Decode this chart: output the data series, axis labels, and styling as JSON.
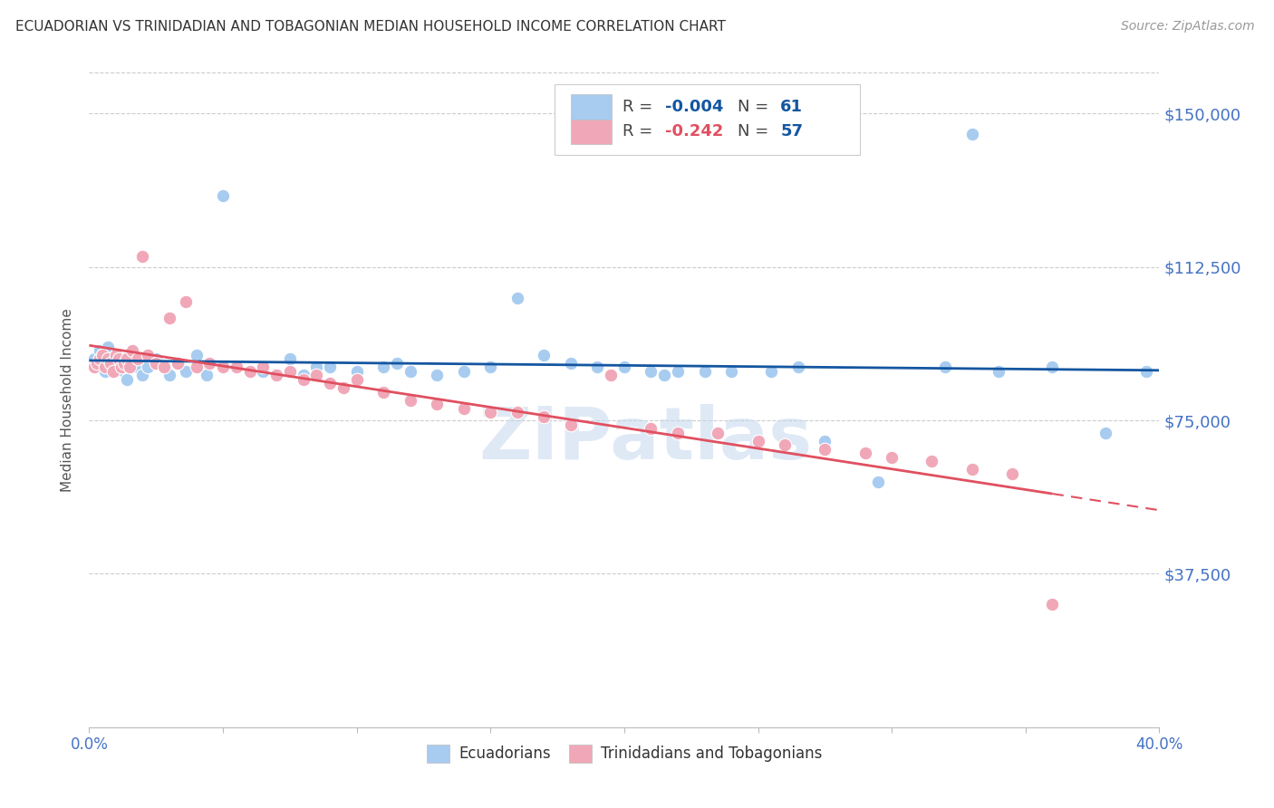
{
  "title": "ECUADORIAN VS TRINIDADIAN AND TOBAGONIAN MEDIAN HOUSEHOLD INCOME CORRELATION CHART",
  "source": "Source: ZipAtlas.com",
  "ylabel": "Median Household Income",
  "x_min": 0.0,
  "x_max": 0.4,
  "y_min": 0,
  "y_max": 160000,
  "y_ticks": [
    37500,
    75000,
    112500,
    150000
  ],
  "y_tick_labels": [
    "$37,500",
    "$75,000",
    "$112,500",
    "$150,000"
  ],
  "x_ticks": [
    0.0,
    0.05,
    0.1,
    0.15,
    0.2,
    0.25,
    0.3,
    0.35,
    0.4
  ],
  "x_tick_labels": [
    "0.0%",
    "",
    "",
    "",
    "",
    "",
    "",
    "",
    "40.0%"
  ],
  "watermark": "ZIPatlas",
  "color_blue": "#A8CCF0",
  "color_pink": "#F0A8B8",
  "color_blue_line": "#1456A0",
  "color_pink_line": "#E05060",
  "color_legend_text": "#1456A0",
  "color_axis_label": "#4472C4",
  "background_color": "#FFFFFF",
  "grid_color": "#CCCCCC",
  "ecu_x": [
    0.002,
    0.003,
    0.004,
    0.005,
    0.006,
    0.007,
    0.008,
    0.009,
    0.01,
    0.011,
    0.012,
    0.013,
    0.014,
    0.015,
    0.016,
    0.018,
    0.02,
    0.022,
    0.025,
    0.028,
    0.03,
    0.033,
    0.036,
    0.04,
    0.044,
    0.05,
    0.055,
    0.06,
    0.065,
    0.07,
    0.075,
    0.08,
    0.085,
    0.09,
    0.1,
    0.11,
    0.115,
    0.12,
    0.13,
    0.14,
    0.15,
    0.16,
    0.17,
    0.18,
    0.19,
    0.2,
    0.21,
    0.215,
    0.22,
    0.23,
    0.24,
    0.255,
    0.265,
    0.275,
    0.295,
    0.32,
    0.33,
    0.34,
    0.36,
    0.38,
    0.395
  ],
  "ecu_y": [
    90000,
    88000,
    92000,
    91000,
    87000,
    93000,
    88000,
    89000,
    91000,
    90000,
    88000,
    87000,
    85000,
    89000,
    90000,
    88000,
    86000,
    88000,
    90000,
    88000,
    86000,
    89000,
    87000,
    91000,
    86000,
    130000,
    88000,
    87000,
    87000,
    86000,
    90000,
    86000,
    88000,
    88000,
    87000,
    88000,
    89000,
    87000,
    86000,
    87000,
    88000,
    105000,
    91000,
    89000,
    88000,
    88000,
    87000,
    86000,
    87000,
    87000,
    87000,
    87000,
    88000,
    70000,
    60000,
    88000,
    145000,
    87000,
    88000,
    72000,
    87000
  ],
  "tri_x": [
    0.002,
    0.003,
    0.004,
    0.005,
    0.006,
    0.007,
    0.008,
    0.009,
    0.01,
    0.011,
    0.012,
    0.013,
    0.014,
    0.015,
    0.016,
    0.018,
    0.02,
    0.022,
    0.025,
    0.028,
    0.03,
    0.033,
    0.036,
    0.04,
    0.045,
    0.05,
    0.055,
    0.06,
    0.065,
    0.07,
    0.075,
    0.08,
    0.085,
    0.09,
    0.095,
    0.1,
    0.11,
    0.12,
    0.13,
    0.14,
    0.15,
    0.16,
    0.17,
    0.18,
    0.195,
    0.21,
    0.22,
    0.235,
    0.25,
    0.26,
    0.275,
    0.29,
    0.3,
    0.315,
    0.33,
    0.345,
    0.36
  ],
  "tri_y": [
    88000,
    89000,
    90000,
    91000,
    88000,
    90000,
    89000,
    87000,
    91000,
    90000,
    88000,
    89000,
    90000,
    88000,
    92000,
    90000,
    115000,
    91000,
    89000,
    88000,
    100000,
    89000,
    104000,
    88000,
    89000,
    88000,
    88000,
    87000,
    88000,
    86000,
    87000,
    85000,
    86000,
    84000,
    83000,
    85000,
    82000,
    80000,
    79000,
    78000,
    77000,
    77000,
    76000,
    74000,
    86000,
    73000,
    72000,
    72000,
    70000,
    69000,
    68000,
    67000,
    66000,
    65000,
    63000,
    62000,
    30000
  ]
}
